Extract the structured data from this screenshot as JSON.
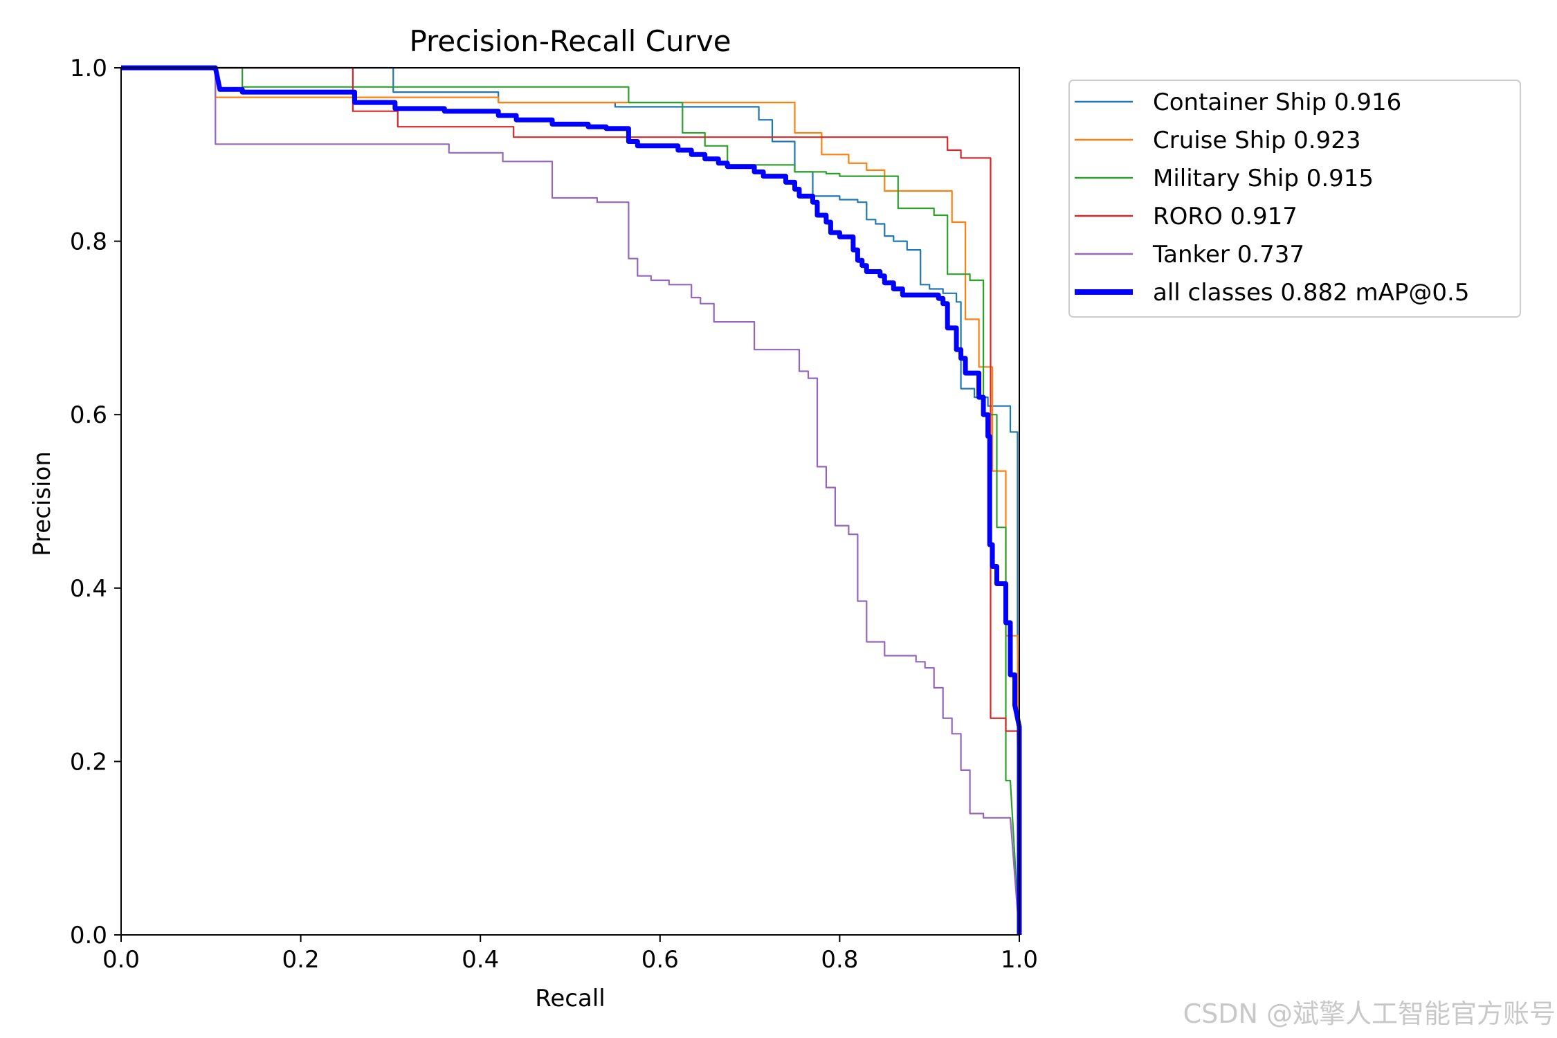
{
  "chart_data": {
    "type": "line",
    "title": "Precision-Recall Curve",
    "xlabel": "Recall",
    "ylabel": "Precision",
    "xlim": [
      0,
      1
    ],
    "ylim": [
      0,
      1
    ],
    "xticks": [
      "0.0",
      "0.2",
      "0.4",
      "0.6",
      "0.8",
      "1.0"
    ],
    "yticks": [
      "0.0",
      "0.2",
      "0.4",
      "0.6",
      "0.8",
      "1.0"
    ],
    "grid": false,
    "legend_position": "outside-right-top",
    "series": [
      {
        "name": "Container Ship 0.916",
        "color": "#1f77b4",
        "points": [
          [
            0,
            1
          ],
          [
            0.303,
            1
          ],
          [
            0.303,
            0.972
          ],
          [
            0.42,
            0.972
          ],
          [
            0.42,
            0.96
          ],
          [
            0.55,
            0.96
          ],
          [
            0.55,
            0.955
          ],
          [
            0.71,
            0.955
          ],
          [
            0.71,
            0.94
          ],
          [
            0.725,
            0.94
          ],
          [
            0.725,
            0.915
          ],
          [
            0.75,
            0.915
          ],
          [
            0.75,
            0.88
          ],
          [
            0.77,
            0.88
          ],
          [
            0.77,
            0.852
          ],
          [
            0.8,
            0.852
          ],
          [
            0.8,
            0.848
          ],
          [
            0.82,
            0.848
          ],
          [
            0.82,
            0.845
          ],
          [
            0.83,
            0.845
          ],
          [
            0.83,
            0.825
          ],
          [
            0.84,
            0.825
          ],
          [
            0.84,
            0.82
          ],
          [
            0.85,
            0.82
          ],
          [
            0.85,
            0.806
          ],
          [
            0.86,
            0.806
          ],
          [
            0.86,
            0.8
          ],
          [
            0.875,
            0.8
          ],
          [
            0.875,
            0.79
          ],
          [
            0.89,
            0.79
          ],
          [
            0.89,
            0.75
          ],
          [
            0.9,
            0.75
          ],
          [
            0.9,
            0.745
          ],
          [
            0.915,
            0.745
          ],
          [
            0.915,
            0.74
          ],
          [
            0.93,
            0.74
          ],
          [
            0.93,
            0.73
          ],
          [
            0.935,
            0.73
          ],
          [
            0.935,
            0.68
          ],
          [
            0.935,
            0.63
          ],
          [
            0.95,
            0.63
          ],
          [
            0.95,
            0.62
          ],
          [
            0.965,
            0.62
          ],
          [
            0.965,
            0.61
          ],
          [
            0.99,
            0.61
          ],
          [
            0.99,
            0.58
          ],
          [
            0.998,
            0.58
          ],
          [
            0.998,
            0.35
          ],
          [
            1.0,
            0.0
          ]
        ]
      },
      {
        "name": "Cruise Ship 0.923",
        "color": "#ff7f0e",
        "points": [
          [
            0,
            1
          ],
          [
            0.105,
            1
          ],
          [
            0.105,
            0.966
          ],
          [
            0.42,
            0.966
          ],
          [
            0.42,
            0.96
          ],
          [
            0.75,
            0.96
          ],
          [
            0.75,
            0.925
          ],
          [
            0.78,
            0.925
          ],
          [
            0.78,
            0.9
          ],
          [
            0.81,
            0.9
          ],
          [
            0.81,
            0.89
          ],
          [
            0.83,
            0.89
          ],
          [
            0.83,
            0.882
          ],
          [
            0.85,
            0.882
          ],
          [
            0.85,
            0.858
          ],
          [
            0.925,
            0.858
          ],
          [
            0.925,
            0.822
          ],
          [
            0.94,
            0.822
          ],
          [
            0.94,
            0.71
          ],
          [
            0.955,
            0.71
          ],
          [
            0.955,
            0.655
          ],
          [
            0.97,
            0.655
          ],
          [
            0.97,
            0.535
          ],
          [
            0.985,
            0.535
          ],
          [
            0.985,
            0.345
          ],
          [
            0.998,
            0.345
          ],
          [
            1.0,
            0.0
          ]
        ]
      },
      {
        "name": "Military Ship 0.915",
        "color": "#2ca02c",
        "points": [
          [
            0,
            1
          ],
          [
            0.135,
            1
          ],
          [
            0.135,
            0.978
          ],
          [
            0.565,
            0.978
          ],
          [
            0.565,
            0.96
          ],
          [
            0.625,
            0.96
          ],
          [
            0.625,
            0.925
          ],
          [
            0.65,
            0.925
          ],
          [
            0.65,
            0.91
          ],
          [
            0.675,
            0.91
          ],
          [
            0.675,
            0.888
          ],
          [
            0.75,
            0.888
          ],
          [
            0.75,
            0.88
          ],
          [
            0.785,
            0.88
          ],
          [
            0.785,
            0.878
          ],
          [
            0.8,
            0.878
          ],
          [
            0.8,
            0.875
          ],
          [
            0.865,
            0.875
          ],
          [
            0.865,
            0.838
          ],
          [
            0.905,
            0.838
          ],
          [
            0.905,
            0.83
          ],
          [
            0.92,
            0.83
          ],
          [
            0.92,
            0.762
          ],
          [
            0.945,
            0.762
          ],
          [
            0.945,
            0.755
          ],
          [
            0.96,
            0.755
          ],
          [
            0.96,
            0.6
          ],
          [
            0.975,
            0.6
          ],
          [
            0.975,
            0.47
          ],
          [
            0.985,
            0.47
          ],
          [
            0.985,
            0.178
          ],
          [
            0.99,
            0.178
          ],
          [
            1.0,
            0.0
          ]
        ]
      },
      {
        "name": "RORO 0.917",
        "color": "#d62728",
        "points": [
          [
            0,
            1
          ],
          [
            0.258,
            1
          ],
          [
            0.258,
            0.95
          ],
          [
            0.308,
            0.95
          ],
          [
            0.308,
            0.932
          ],
          [
            0.437,
            0.932
          ],
          [
            0.437,
            0.92
          ],
          [
            0.92,
            0.92
          ],
          [
            0.92,
            0.905
          ],
          [
            0.935,
            0.905
          ],
          [
            0.935,
            0.896
          ],
          [
            0.968,
            0.896
          ],
          [
            0.968,
            0.25
          ],
          [
            0.985,
            0.25
          ],
          [
            0.985,
            0.235
          ],
          [
            0.998,
            0.235
          ],
          [
            1.0,
            0.0
          ]
        ]
      },
      {
        "name": "Tanker 0.737",
        "color": "#9467bd",
        "points": [
          [
            0,
            1
          ],
          [
            0.105,
            1
          ],
          [
            0.105,
            0.912
          ],
          [
            0.365,
            0.912
          ],
          [
            0.365,
            0.902
          ],
          [
            0.425,
            0.902
          ],
          [
            0.425,
            0.892
          ],
          [
            0.48,
            0.892
          ],
          [
            0.48,
            0.85
          ],
          [
            0.53,
            0.85
          ],
          [
            0.53,
            0.845
          ],
          [
            0.565,
            0.845
          ],
          [
            0.565,
            0.78
          ],
          [
            0.575,
            0.78
          ],
          [
            0.575,
            0.76
          ],
          [
            0.59,
            0.76
          ],
          [
            0.59,
            0.755
          ],
          [
            0.61,
            0.755
          ],
          [
            0.61,
            0.75
          ],
          [
            0.635,
            0.75
          ],
          [
            0.635,
            0.735
          ],
          [
            0.645,
            0.735
          ],
          [
            0.645,
            0.728
          ],
          [
            0.66,
            0.728
          ],
          [
            0.66,
            0.707
          ],
          [
            0.705,
            0.707
          ],
          [
            0.705,
            0.675
          ],
          [
            0.755,
            0.675
          ],
          [
            0.755,
            0.65
          ],
          [
            0.765,
            0.65
          ],
          [
            0.765,
            0.642
          ],
          [
            0.775,
            0.642
          ],
          [
            0.775,
            0.54
          ],
          [
            0.785,
            0.54
          ],
          [
            0.785,
            0.516
          ],
          [
            0.795,
            0.516
          ],
          [
            0.795,
            0.472
          ],
          [
            0.81,
            0.472
          ],
          [
            0.81,
            0.462
          ],
          [
            0.82,
            0.462
          ],
          [
            0.82,
            0.385
          ],
          [
            0.83,
            0.385
          ],
          [
            0.83,
            0.338
          ],
          [
            0.85,
            0.338
          ],
          [
            0.85,
            0.322
          ],
          [
            0.885,
            0.322
          ],
          [
            0.885,
            0.315
          ],
          [
            0.895,
            0.315
          ],
          [
            0.895,
            0.308
          ],
          [
            0.905,
            0.308
          ],
          [
            0.905,
            0.285
          ],
          [
            0.915,
            0.285
          ],
          [
            0.915,
            0.25
          ],
          [
            0.925,
            0.25
          ],
          [
            0.925,
            0.232
          ],
          [
            0.935,
            0.232
          ],
          [
            0.935,
            0.19
          ],
          [
            0.945,
            0.19
          ],
          [
            0.945,
            0.14
          ],
          [
            0.96,
            0.14
          ],
          [
            0.96,
            0.135
          ],
          [
            0.99,
            0.135
          ],
          [
            1.0,
            0.0
          ]
        ]
      },
      {
        "name": "all classes 0.882 mAP@0.5",
        "color": "#0000ff",
        "points": [
          [
            0,
            1
          ],
          [
            0.105,
            1
          ],
          [
            0.11,
            0.975
          ],
          [
            0.135,
            0.975
          ],
          [
            0.135,
            0.972
          ],
          [
            0.26,
            0.972
          ],
          [
            0.26,
            0.96
          ],
          [
            0.305,
            0.96
          ],
          [
            0.305,
            0.953
          ],
          [
            0.36,
            0.953
          ],
          [
            0.36,
            0.95
          ],
          [
            0.42,
            0.95
          ],
          [
            0.42,
            0.945
          ],
          [
            0.44,
            0.945
          ],
          [
            0.44,
            0.94
          ],
          [
            0.48,
            0.94
          ],
          [
            0.48,
            0.935
          ],
          [
            0.52,
            0.935
          ],
          [
            0.52,
            0.932
          ],
          [
            0.54,
            0.932
          ],
          [
            0.54,
            0.93
          ],
          [
            0.565,
            0.93
          ],
          [
            0.565,
            0.915
          ],
          [
            0.575,
            0.915
          ],
          [
            0.575,
            0.91
          ],
          [
            0.62,
            0.91
          ],
          [
            0.62,
            0.905
          ],
          [
            0.635,
            0.905
          ],
          [
            0.635,
            0.9
          ],
          [
            0.65,
            0.9
          ],
          [
            0.65,
            0.895
          ],
          [
            0.665,
            0.895
          ],
          [
            0.665,
            0.89
          ],
          [
            0.675,
            0.89
          ],
          [
            0.675,
            0.886
          ],
          [
            0.705,
            0.886
          ],
          [
            0.705,
            0.88
          ],
          [
            0.715,
            0.88
          ],
          [
            0.715,
            0.875
          ],
          [
            0.74,
            0.875
          ],
          [
            0.74,
            0.868
          ],
          [
            0.75,
            0.868
          ],
          [
            0.75,
            0.86
          ],
          [
            0.755,
            0.86
          ],
          [
            0.755,
            0.852
          ],
          [
            0.77,
            0.852
          ],
          [
            0.77,
            0.845
          ],
          [
            0.775,
            0.845
          ],
          [
            0.775,
            0.83
          ],
          [
            0.785,
            0.83
          ],
          [
            0.785,
            0.822
          ],
          [
            0.79,
            0.822
          ],
          [
            0.79,
            0.81
          ],
          [
            0.8,
            0.81
          ],
          [
            0.8,
            0.805
          ],
          [
            0.815,
            0.805
          ],
          [
            0.815,
            0.79
          ],
          [
            0.82,
            0.79
          ],
          [
            0.82,
            0.778
          ],
          [
            0.825,
            0.778
          ],
          [
            0.825,
            0.772
          ],
          [
            0.83,
            0.772
          ],
          [
            0.83,
            0.765
          ],
          [
            0.845,
            0.765
          ],
          [
            0.845,
            0.76
          ],
          [
            0.85,
            0.76
          ],
          [
            0.85,
            0.752
          ],
          [
            0.86,
            0.752
          ],
          [
            0.86,
            0.745
          ],
          [
            0.87,
            0.745
          ],
          [
            0.87,
            0.738
          ],
          [
            0.91,
            0.738
          ],
          [
            0.91,
            0.734
          ],
          [
            0.915,
            0.734
          ],
          [
            0.915,
            0.728
          ],
          [
            0.92,
            0.728
          ],
          [
            0.92,
            0.7
          ],
          [
            0.93,
            0.7
          ],
          [
            0.93,
            0.675
          ],
          [
            0.935,
            0.675
          ],
          [
            0.935,
            0.665
          ],
          [
            0.94,
            0.665
          ],
          [
            0.94,
            0.648
          ],
          [
            0.955,
            0.648
          ],
          [
            0.955,
            0.62
          ],
          [
            0.96,
            0.62
          ],
          [
            0.96,
            0.6
          ],
          [
            0.965,
            0.6
          ],
          [
            0.965,
            0.575
          ],
          [
            0.967,
            0.575
          ],
          [
            0.967,
            0.45
          ],
          [
            0.97,
            0.45
          ],
          [
            0.97,
            0.425
          ],
          [
            0.975,
            0.425
          ],
          [
            0.975,
            0.405
          ],
          [
            0.985,
            0.405
          ],
          [
            0.985,
            0.36
          ],
          [
            0.99,
            0.36
          ],
          [
            0.99,
            0.3
          ],
          [
            0.995,
            0.3
          ],
          [
            0.995,
            0.265
          ],
          [
            1.0,
            0.24
          ],
          [
            1.0,
            0.0
          ]
        ]
      }
    ]
  },
  "watermark": "CSDN @斌擎人工智能官方账号"
}
